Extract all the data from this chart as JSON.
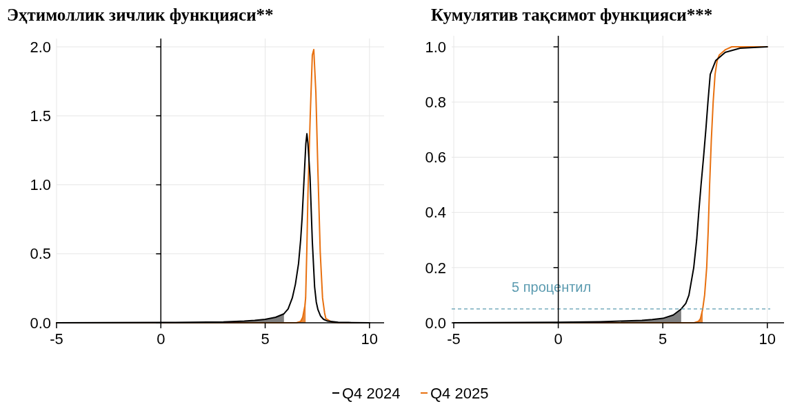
{
  "chart_data": [
    {
      "type": "line",
      "title": "Эҳтимоллик зичлик функцияси**",
      "xlim": [
        -5,
        10.7
      ],
      "xticks": [
        -5,
        0,
        5,
        10
      ],
      "ylim": [
        0,
        2.06
      ],
      "yticks": [
        {
          "value": 0,
          "label": "0.0"
        },
        0.5,
        {
          "value": 1,
          "label": "1.0"
        },
        1.5,
        {
          "value": 2,
          "label": "2.0"
        }
      ],
      "grid": true,
      "legend": "bottom",
      "series": [
        {
          "type": "area",
          "color": "#7f7f7f",
          "x": [
            3,
            4,
            4.5,
            5,
            5.5,
            5.9
          ],
          "values": [
            0.006,
            0.012,
            0.017,
            0.025,
            0.04,
            0.065
          ]
        },
        {
          "type": "area",
          "color": "#e8883a",
          "x": [
            6.6,
            6.7,
            6.8,
            6.9,
            6.94
          ],
          "values": [
            0.005,
            0.01,
            0.04,
            0.12,
            0.18
          ]
        },
        {
          "name": "Q4 2024",
          "color": "#000000",
          "x": [
            -5,
            0,
            3,
            4,
            4.5,
            5,
            5.5,
            5.9,
            6.1,
            6.3,
            6.45,
            6.6,
            6.7,
            6.77,
            6.88,
            6.95,
            7.0,
            7.05,
            7.15,
            7.26,
            7.37,
            7.45,
            7.53,
            7.65,
            7.8,
            8,
            8.5,
            9,
            10
          ],
          "values": [
            0,
            0.002,
            0.006,
            0.012,
            0.017,
            0.025,
            0.04,
            0.065,
            0.1,
            0.18,
            0.28,
            0.43,
            0.6,
            0.76,
            1.09,
            1.3,
            1.37,
            1.3,
            1.06,
            0.59,
            0.26,
            0.15,
            0.095,
            0.05,
            0.025,
            0.012,
            0.004,
            0.002,
            0
          ]
        },
        {
          "name": "Q4 2025",
          "color": "#e8700f",
          "x": [
            -5,
            6.5,
            6.7,
            6.8,
            6.9,
            6.94,
            7.0,
            7.05,
            7.16,
            7.26,
            7.33,
            7.43,
            7.53,
            7.64,
            7.75,
            7.85,
            7.91,
            8.2,
            8.5,
            10
          ],
          "values": [
            0,
            0,
            0.01,
            0.04,
            0.12,
            0.18,
            0.55,
            0.93,
            1.5,
            1.94,
            1.98,
            1.67,
            1.09,
            0.51,
            0.18,
            0.07,
            0.03,
            0.005,
            0,
            0
          ]
        }
      ]
    },
    {
      "type": "line",
      "title": "Кумулятив тақсимот функцияси***",
      "xlim": [
        -5.1,
        10.8
      ],
      "xticks": [
        -5,
        0,
        5,
        10
      ],
      "ylim": [
        0,
        1.04
      ],
      "yticks": [
        {
          "value": 0,
          "label": "0.0"
        },
        0.2,
        0.4,
        0.6,
        0.8,
        {
          "value": 1,
          "label": "1.0"
        }
      ],
      "grid": true,
      "ref_lines": [
        {
          "axis": "y",
          "value": 0.05,
          "label": "5 процентил",
          "color": "#5b9bb0",
          "line_style": "dashed"
        }
      ],
      "series": [
        {
          "type": "area",
          "color": "#7f7f7f",
          "x": [
            3,
            4,
            4.5,
            5,
            5.5,
            5.88
          ],
          "values": [
            0.006,
            0.009,
            0.012,
            0.016,
            0.028,
            0.05
          ]
        },
        {
          "type": "area",
          "color": "#e8883a",
          "x": [
            6.5,
            6.7,
            6.8,
            6.91
          ],
          "values": [
            0,
            0.005,
            0.015,
            0.05
          ]
        },
        {
          "color": "#000000",
          "x": [
            -5,
            0,
            2,
            3,
            4,
            4.5,
            5,
            5.5,
            5.88,
            6.1,
            6.25,
            6.48,
            6.62,
            6.72,
            6.83,
            6.95,
            7.06,
            7.16,
            7.27,
            7.53,
            7.99,
            8.7,
            10
          ],
          "values": [
            0,
            0.002,
            0.004,
            0.006,
            0.009,
            0.012,
            0.016,
            0.028,
            0.05,
            0.07,
            0.1,
            0.2,
            0.3,
            0.4,
            0.5,
            0.6,
            0.7,
            0.8,
            0.9,
            0.95,
            0.98,
            0.995,
            1.0
          ]
        },
        {
          "color": "#e8700f",
          "x": [
            -5,
            6.5,
            6.7,
            6.8,
            6.91,
            7.0,
            7.1,
            7.17,
            7.24,
            7.32,
            7.41,
            7.5,
            7.6,
            7.7,
            8.0,
            8.3,
            10
          ],
          "values": [
            0,
            0,
            0.005,
            0.015,
            0.05,
            0.1,
            0.2,
            0.33,
            0.5,
            0.66,
            0.8,
            0.9,
            0.95,
            0.97,
            0.99,
            1.0,
            1.0
          ]
        }
      ]
    }
  ]
}
